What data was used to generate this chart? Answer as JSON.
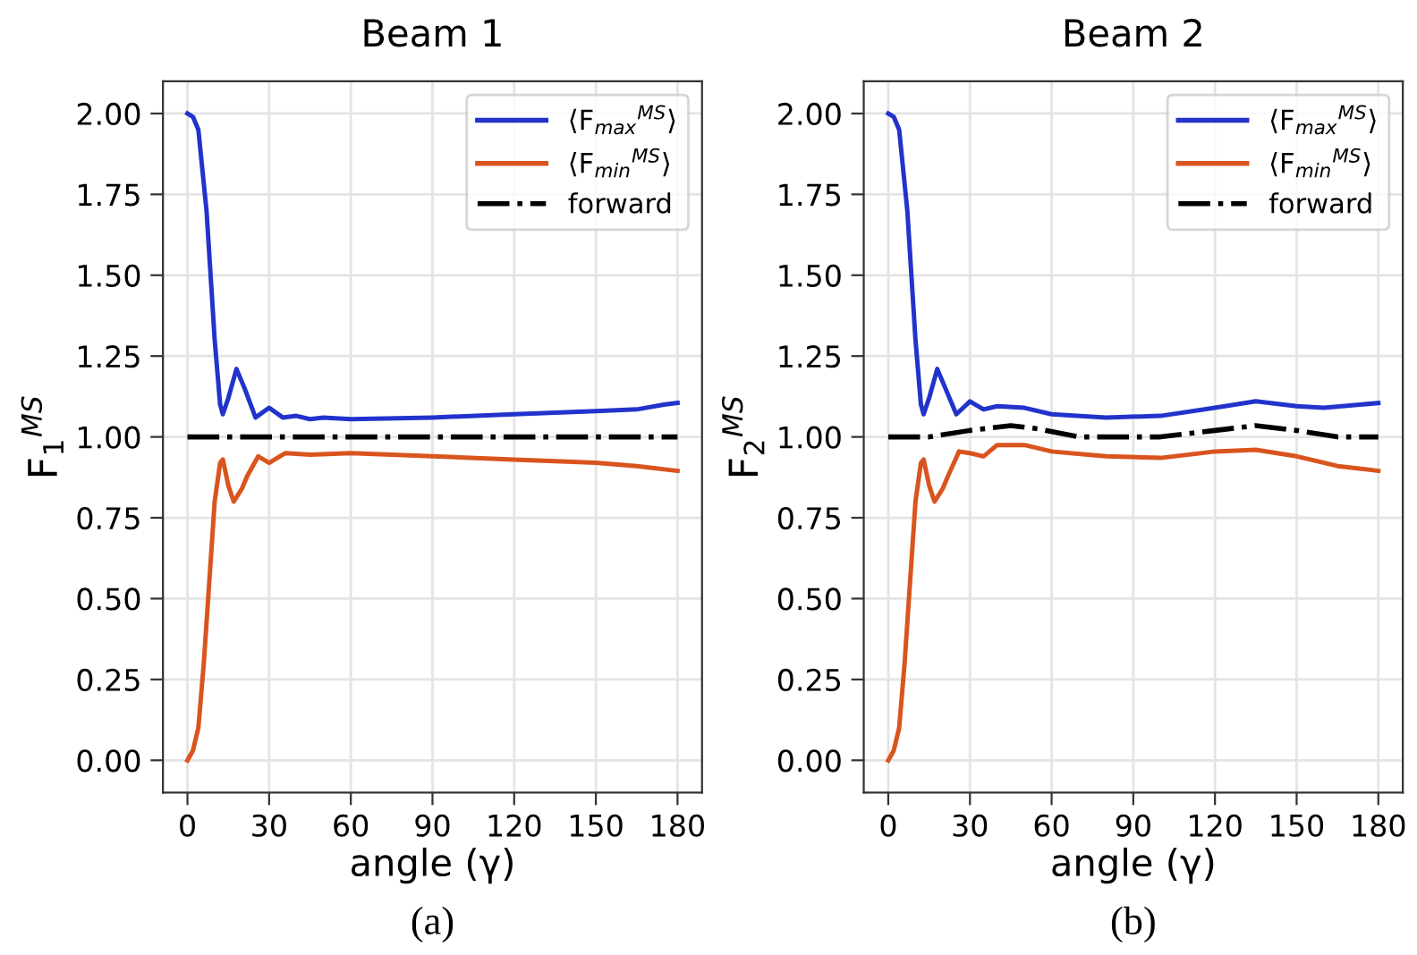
{
  "chart_data": [
    {
      "type": "line",
      "title": "Beam 1",
      "xlabel": "angle (γ)",
      "ylabel": "F$_{1}$$^{MS}$",
      "annotations": [
        "(a)"
      ],
      "xlim": [
        -9,
        189
      ],
      "ylim": [
        -0.1,
        2.1
      ],
      "xticks": [
        0,
        30,
        60,
        90,
        120,
        150,
        180
      ],
      "yticks": [
        {
          "value": 0,
          "label": "0.00"
        },
        {
          "value": 0.25,
          "label": "0.25"
        },
        {
          "value": 0.5,
          "label": "0.50"
        },
        {
          "value": 0.75,
          "label": "0.75"
        },
        {
          "value": 1,
          "label": "1.00"
        },
        {
          "value": 1.25,
          "label": "1.25"
        },
        {
          "value": 1.5,
          "label": "1.50"
        },
        {
          "value": 1.75,
          "label": "1.75"
        },
        {
          "value": 2,
          "label": "2.00"
        }
      ],
      "grid": true,
      "legend": "top right",
      "series": [
        {
          "name": "⟨F$_{max}$$^{MS}$⟩",
          "color": "#2233cc",
          "line_style": "solid",
          "x": [
            0,
            2,
            4,
            7,
            10,
            12,
            13,
            15,
            18,
            21,
            25,
            30,
            35,
            40,
            45,
            50,
            60,
            90,
            120,
            150,
            165,
            175,
            180
          ],
          "values": [
            2.0,
            1.99,
            1.95,
            1.7,
            1.3,
            1.1,
            1.07,
            1.12,
            1.21,
            1.15,
            1.06,
            1.09,
            1.06,
            1.065,
            1.055,
            1.06,
            1.055,
            1.06,
            1.07,
            1.08,
            1.085,
            1.1,
            1.105
          ]
        },
        {
          "name": "⟨F$_{min}$$^{MS}$⟩",
          "color": "#d9541e",
          "line_style": "solid",
          "x": [
            0,
            2,
            4,
            6,
            8,
            10,
            12,
            13,
            15,
            17,
            20,
            22,
            26,
            30,
            36,
            45,
            60,
            90,
            120,
            150,
            165,
            180
          ],
          "values": [
            0,
            0.03,
            0.1,
            0.3,
            0.55,
            0.8,
            0.92,
            0.93,
            0.85,
            0.8,
            0.84,
            0.88,
            0.94,
            0.92,
            0.95,
            0.945,
            0.95,
            0.94,
            0.93,
            0.92,
            0.91,
            0.895
          ]
        },
        {
          "name": "forward",
          "color": "#000000",
          "line_style": "dashdot",
          "x": [
            0,
            180
          ],
          "values": [
            1.0,
            1.0
          ]
        }
      ]
    },
    {
      "type": "line",
      "title": "Beam 2",
      "xlabel": "angle (γ)",
      "ylabel": "F$_{2}$$^{MS}$",
      "annotations": [
        "(b)"
      ],
      "xlim": [
        -9,
        189
      ],
      "ylim": [
        -0.1,
        2.1
      ],
      "xticks": [
        0,
        30,
        60,
        90,
        120,
        150,
        180
      ],
      "yticks": [
        {
          "value": 0,
          "label": "0.00"
        },
        {
          "value": 0.25,
          "label": "0.25"
        },
        {
          "value": 0.5,
          "label": "0.50"
        },
        {
          "value": 0.75,
          "label": "0.75"
        },
        {
          "value": 1,
          "label": "1.00"
        },
        {
          "value": 1.25,
          "label": "1.25"
        },
        {
          "value": 1.5,
          "label": "1.50"
        },
        {
          "value": 1.75,
          "label": "1.75"
        },
        {
          "value": 2,
          "label": "2.00"
        }
      ],
      "grid": true,
      "legend": "top right",
      "series": [
        {
          "name": "⟨F$_{max}$$^{MS}$⟩",
          "color": "#2233cc",
          "line_style": "solid",
          "x": [
            0,
            2,
            4,
            7,
            10,
            12,
            13,
            15,
            18,
            21,
            25,
            30,
            35,
            40,
            50,
            60,
            80,
            100,
            120,
            135,
            150,
            160,
            180
          ],
          "values": [
            2.0,
            1.99,
            1.95,
            1.7,
            1.3,
            1.1,
            1.07,
            1.12,
            1.21,
            1.15,
            1.07,
            1.11,
            1.085,
            1.095,
            1.09,
            1.07,
            1.06,
            1.065,
            1.09,
            1.11,
            1.095,
            1.09,
            1.105
          ]
        },
        {
          "name": "⟨F$_{min}$$^{MS}$⟩",
          "color": "#d9541e",
          "line_style": "solid",
          "x": [
            0,
            2,
            4,
            6,
            8,
            10,
            12,
            13,
            15,
            17,
            20,
            22,
            26,
            30,
            35,
            40,
            50,
            60,
            80,
            100,
            120,
            135,
            150,
            165,
            180
          ],
          "values": [
            0,
            0.03,
            0.1,
            0.3,
            0.55,
            0.8,
            0.92,
            0.93,
            0.85,
            0.8,
            0.84,
            0.88,
            0.955,
            0.95,
            0.94,
            0.975,
            0.975,
            0.955,
            0.94,
            0.935,
            0.955,
            0.96,
            0.94,
            0.91,
            0.895
          ]
        },
        {
          "name": "forward",
          "color": "#000000",
          "line_style": "dashdot",
          "x": [
            0,
            15,
            30,
            45,
            55,
            70,
            100,
            120,
            135,
            150,
            165,
            180
          ],
          "values": [
            1.0,
            1.0,
            1.02,
            1.035,
            1.025,
            1.0,
            1.0,
            1.02,
            1.035,
            1.02,
            1.0,
            1.0
          ]
        }
      ]
    }
  ]
}
